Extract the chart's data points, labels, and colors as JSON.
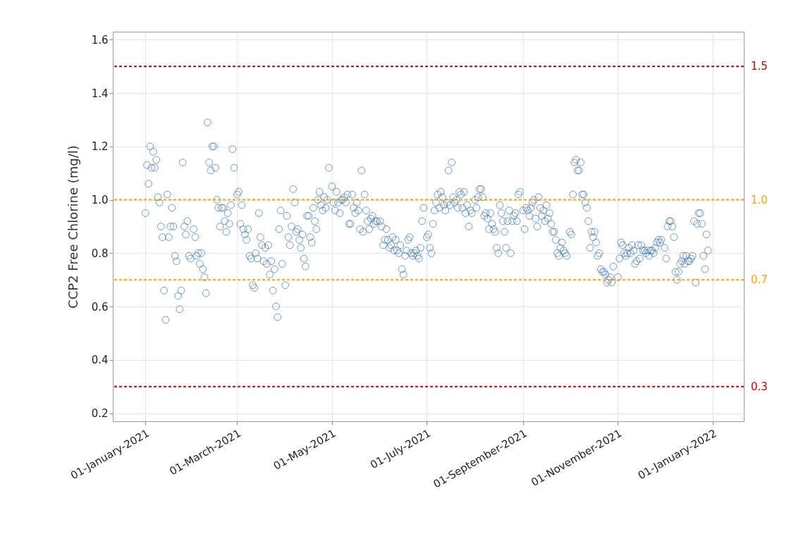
{
  "chart_data": {
    "type": "scatter",
    "ylabel": "CCP2 Free Chlorine (mg/l)",
    "xlim": [
      "2020-12-11",
      "2022-01-21"
    ],
    "ylim": [
      0.17,
      1.63
    ],
    "xticks": [
      {
        "value": "2021-01-01",
        "label": "01-January-2021"
      },
      {
        "value": "2021-03-01",
        "label": "01-March-2021"
      },
      {
        "value": "2021-05-01",
        "label": "01-May-2021"
      },
      {
        "value": "2021-07-01",
        "label": "01-July-2021"
      },
      {
        "value": "2021-09-01",
        "label": "01-September-2021"
      },
      {
        "value": "2021-11-01",
        "label": "01-November-2021"
      },
      {
        "value": "2022-01-01",
        "label": "01-January-2022"
      }
    ],
    "yticks": [
      0.2,
      0.4,
      0.6,
      0.8,
      {
        "value": 1,
        "label": "1.0"
      },
      1.2,
      1.4,
      1.6
    ],
    "grid": true,
    "marker": "circle",
    "color": "#2f6db5",
    "x": [
      "2021-01-01",
      "2021-01-02",
      "2021-01-03",
      "2021-01-04",
      "2021-01-05",
      "2021-01-06",
      "2021-01-07",
      "2021-01-08",
      "2021-01-09",
      "2021-01-10",
      "2021-01-11",
      "2021-01-12",
      "2021-01-13",
      "2021-01-14",
      "2021-01-15",
      "2021-01-16",
      "2021-01-17",
      "2021-01-18",
      "2021-01-19",
      "2021-01-20",
      "2021-01-21",
      "2021-01-22",
      "2021-01-23",
      "2021-01-24",
      "2021-01-25",
      "2021-01-26",
      "2021-01-27",
      "2021-01-28",
      "2021-01-29",
      "2021-01-30",
      "2021-02-01",
      "2021-02-02",
      "2021-02-03",
      "2021-02-04",
      "2021-02-05",
      "2021-02-06",
      "2021-02-07",
      "2021-02-08",
      "2021-02-09",
      "2021-02-10",
      "2021-02-11",
      "2021-02-12",
      "2021-02-13",
      "2021-02-14",
      "2021-02-15",
      "2021-02-16",
      "2021-02-17",
      "2021-02-18",
      "2021-02-19",
      "2021-02-20",
      "2021-02-21",
      "2021-02-22",
      "2021-02-23",
      "2021-02-24",
      "2021-02-25",
      "2021-02-26",
      "2021-02-27",
      "2021-03-01",
      "2021-03-02",
      "2021-03-03",
      "2021-03-04",
      "2021-03-05",
      "2021-03-06",
      "2021-03-07",
      "2021-03-08",
      "2021-03-09",
      "2021-03-10",
      "2021-03-11",
      "2021-03-12",
      "2021-03-13",
      "2021-03-14",
      "2021-03-15",
      "2021-03-16",
      "2021-03-17",
      "2021-03-18",
      "2021-03-19",
      "2021-03-20",
      "2021-03-21",
      "2021-03-22",
      "2021-03-23",
      "2021-03-24",
      "2021-03-25",
      "2021-03-26",
      "2021-03-27",
      "2021-03-28",
      "2021-03-29",
      "2021-03-30",
      "2021-04-01",
      "2021-04-02",
      "2021-04-03",
      "2021-04-04",
      "2021-04-05",
      "2021-04-06",
      "2021-04-07",
      "2021-04-08",
      "2021-04-09",
      "2021-04-10",
      "2021-04-11",
      "2021-04-12",
      "2021-04-13",
      "2021-04-14",
      "2021-04-15",
      "2021-04-16",
      "2021-04-17",
      "2021-04-18",
      "2021-04-19",
      "2021-04-20",
      "2021-04-21",
      "2021-04-22",
      "2021-04-23",
      "2021-04-24",
      "2021-04-25",
      "2021-04-26",
      "2021-04-27",
      "2021-04-28",
      "2021-04-29",
      "2021-05-01",
      "2021-05-02",
      "2021-05-03",
      "2021-05-04",
      "2021-05-05",
      "2021-05-06",
      "2021-05-07",
      "2021-05-08",
      "2021-05-09",
      "2021-05-10",
      "2021-05-11",
      "2021-05-12",
      "2021-05-13",
      "2021-05-14",
      "2021-05-15",
      "2021-05-16",
      "2021-05-17",
      "2021-05-18",
      "2021-05-19",
      "2021-05-20",
      "2021-05-21",
      "2021-05-22",
      "2021-05-23",
      "2021-05-24",
      "2021-05-25",
      "2021-05-26",
      "2021-05-27",
      "2021-05-28",
      "2021-05-29",
      "2021-05-30",
      "2021-06-01",
      "2021-06-02",
      "2021-06-03",
      "2021-06-04",
      "2021-06-05",
      "2021-06-06",
      "2021-06-07",
      "2021-06-08",
      "2021-06-09",
      "2021-06-10",
      "2021-06-11",
      "2021-06-12",
      "2021-06-13",
      "2021-06-14",
      "2021-06-15",
      "2021-06-16",
      "2021-06-17",
      "2021-06-18",
      "2021-06-19",
      "2021-06-20",
      "2021-06-21",
      "2021-06-22",
      "2021-06-23",
      "2021-06-24",
      "2021-06-25",
      "2021-06-26",
      "2021-06-27",
      "2021-06-28",
      "2021-06-29",
      "2021-07-01",
      "2021-07-02",
      "2021-07-03",
      "2021-07-04",
      "2021-07-05",
      "2021-07-06",
      "2021-07-07",
      "2021-07-08",
      "2021-07-09",
      "2021-07-10",
      "2021-07-11",
      "2021-07-12",
      "2021-07-13",
      "2021-07-14",
      "2021-07-15",
      "2021-07-16",
      "2021-07-17",
      "2021-07-18",
      "2021-07-19",
      "2021-07-20",
      "2021-07-21",
      "2021-07-22",
      "2021-07-23",
      "2021-07-24",
      "2021-07-25",
      "2021-07-26",
      "2021-07-27",
      "2021-07-28",
      "2021-07-29",
      "2021-07-30",
      "2021-08-01",
      "2021-08-02",
      "2021-08-03",
      "2021-08-04",
      "2021-08-05",
      "2021-08-06",
      "2021-08-07",
      "2021-08-08",
      "2021-08-09",
      "2021-08-10",
      "2021-08-11",
      "2021-08-12",
      "2021-08-13",
      "2021-08-14",
      "2021-08-15",
      "2021-08-16",
      "2021-08-17",
      "2021-08-18",
      "2021-08-19",
      "2021-08-20",
      "2021-08-21",
      "2021-08-22",
      "2021-08-23",
      "2021-08-24",
      "2021-08-25",
      "2021-08-26",
      "2021-08-27",
      "2021-08-28",
      "2021-08-29",
      "2021-08-30",
      "2021-09-01",
      "2021-09-02",
      "2021-09-03",
      "2021-09-04",
      "2021-09-05",
      "2021-09-06",
      "2021-09-07",
      "2021-09-08",
      "2021-09-09",
      "2021-09-10",
      "2021-09-11",
      "2021-09-12",
      "2021-09-13",
      "2021-09-14",
      "2021-09-15",
      "2021-09-16",
      "2021-09-17",
      "2021-09-18",
      "2021-09-19",
      "2021-09-20",
      "2021-09-21",
      "2021-09-22",
      "2021-09-23",
      "2021-09-24",
      "2021-09-25",
      "2021-09-26",
      "2021-09-27",
      "2021-09-28",
      "2021-09-29",
      "2021-10-01",
      "2021-10-02",
      "2021-10-03",
      "2021-10-04",
      "2021-10-05",
      "2021-10-06",
      "2021-10-07",
      "2021-10-08",
      "2021-10-09",
      "2021-10-10",
      "2021-10-11",
      "2021-10-12",
      "2021-10-13",
      "2021-10-14",
      "2021-10-15",
      "2021-10-16",
      "2021-10-17",
      "2021-10-18",
      "2021-10-19",
      "2021-10-20",
      "2021-10-21",
      "2021-10-22",
      "2021-10-23",
      "2021-10-24",
      "2021-10-25",
      "2021-10-26",
      "2021-10-27",
      "2021-10-28",
      "2021-10-29",
      "2021-11-01",
      "2021-11-02",
      "2021-11-03",
      "2021-11-04",
      "2021-11-05",
      "2021-11-06",
      "2021-11-07",
      "2021-11-08",
      "2021-11-09",
      "2021-11-10",
      "2021-11-11",
      "2021-11-12",
      "2021-11-13",
      "2021-11-14",
      "2021-11-15",
      "2021-11-16",
      "2021-11-17",
      "2021-11-18",
      "2021-11-19",
      "2021-11-20",
      "2021-11-21",
      "2021-11-22",
      "2021-11-23",
      "2021-11-24",
      "2021-11-25",
      "2021-11-26",
      "2021-11-27",
      "2021-11-28",
      "2021-11-29",
      "2021-12-01",
      "2021-12-02",
      "2021-12-03",
      "2021-12-04",
      "2021-12-05",
      "2021-12-06",
      "2021-12-07",
      "2021-12-08",
      "2021-12-09",
      "2021-12-10",
      "2021-12-11",
      "2021-12-12",
      "2021-12-13",
      "2021-12-14",
      "2021-12-15",
      "2021-12-16",
      "2021-12-17",
      "2021-12-18",
      "2021-12-19",
      "2021-12-20",
      "2021-12-21",
      "2021-12-22",
      "2021-12-23",
      "2021-12-24",
      "2021-12-25",
      "2021-12-26",
      "2021-12-27",
      "2021-12-28",
      "2021-12-29"
    ],
    "values": [
      0.95,
      1.13,
      1.06,
      1.2,
      1.12,
      1.18,
      1.12,
      1.15,
      1.01,
      0.99,
      0.9,
      0.86,
      0.66,
      0.55,
      1.02,
      0.86,
      0.9,
      0.97,
      0.9,
      0.79,
      0.77,
      0.64,
      0.59,
      0.66,
      1.14,
      0.9,
      0.87,
      0.92,
      0.79,
      0.78,
      0.89,
      0.86,
      0.79,
      0.8,
      0.76,
      0.8,
      0.74,
      0.71,
      0.65,
      1.29,
      1.14,
      1.11,
      1.2,
      1.2,
      1.12,
      1.0,
      0.97,
      0.9,
      0.97,
      0.97,
      0.92,
      0.88,
      0.95,
      0.91,
      0.98,
      1.19,
      1.12,
      1.02,
      1.03,
      0.91,
      0.98,
      0.89,
      0.87,
      0.85,
      0.89,
      0.79,
      0.78,
      0.68,
      0.67,
      0.8,
      0.78,
      0.95,
      0.86,
      0.83,
      0.77,
      0.82,
      0.76,
      0.83,
      0.72,
      0.77,
      0.66,
      0.74,
      0.6,
      0.56,
      0.89,
      0.96,
      0.76,
      0.68,
      0.94,
      0.86,
      0.83,
      0.9,
      1.04,
      0.99,
      0.88,
      0.89,
      0.85,
      0.82,
      0.87,
      0.78,
      0.75,
      0.94,
      0.94,
      0.86,
      0.84,
      0.97,
      0.92,
      0.89,
      1.0,
      1.03,
      0.98,
      0.96,
      1.01,
      0.97,
      1.0,
      1.12,
      1.05,
      0.99,
      0.96,
      1.03,
      0.99,
      0.95,
      1.0,
      1.0,
      1.01,
      0.99,
      1.02,
      0.91,
      0.91,
      1.02,
      0.97,
      0.95,
      0.99,
      0.96,
      0.89,
      1.11,
      0.88,
      1.02,
      0.96,
      0.92,
      0.89,
      0.93,
      0.94,
      0.91,
      0.92,
      0.92,
      0.92,
      0.9,
      0.83,
      0.85,
      0.89,
      0.85,
      0.82,
      0.83,
      0.86,
      0.81,
      0.85,
      0.81,
      0.8,
      0.83,
      0.74,
      0.72,
      0.79,
      0.81,
      0.85,
      0.86,
      0.8,
      0.79,
      0.8,
      0.81,
      0.79,
      0.78,
      0.82,
      0.92,
      0.97,
      0.86,
      0.87,
      0.82,
      0.8,
      0.91,
      0.96,
      0.99,
      1.02,
      0.97,
      1.03,
      1.01,
      0.98,
      0.96,
      0.99,
      1.11,
      0.98,
      1.14,
      1.01,
      0.99,
      1.0,
      0.97,
      1.03,
      1.02,
      0.97,
      1.03,
      0.95,
      0.98,
      0.9,
      0.96,
      0.95,
      1.0,
      0.97,
      1.01,
      1.04,
      1.04,
      1.01,
      0.94,
      0.95,
      0.93,
      0.89,
      0.95,
      0.91,
      0.89,
      0.88,
      0.82,
      0.8,
      0.98,
      0.95,
      0.92,
      0.88,
      0.82,
      0.92,
      0.96,
      0.8,
      0.92,
      0.94,
      0.95,
      0.92,
      1.02,
      1.03,
      0.96,
      0.89,
      0.97,
      0.96,
      0.94,
      0.97,
      0.99,
      1.0,
      0.93,
      0.9,
      1.01,
      0.97,
      0.94,
      0.96,
      0.92,
      0.98,
      0.93,
      0.95,
      0.91,
      0.88,
      0.88,
      0.85,
      0.8,
      0.79,
      0.82,
      0.84,
      0.81,
      0.8,
      0.79,
      0.88,
      0.87,
      1.02,
      1.14,
      1.15,
      1.11,
      1.11,
      1.14,
      1.02,
      1.02,
      0.99,
      0.97,
      0.92,
      0.82,
      0.88,
      0.86,
      0.88,
      0.84,
      0.79,
      0.8,
      0.74,
      0.73,
      0.73,
      0.72,
      0.69,
      0.7,
      0.71,
      0.69,
      0.75,
      0.71,
      0.78,
      0.84,
      0.83,
      0.8,
      0.79,
      0.8,
      0.82,
      0.8,
      0.83,
      0.81,
      0.76,
      0.77,
      0.83,
      0.78,
      0.83,
      0.81,
      0.81,
      0.8,
      0.81,
      0.79,
      0.81,
      0.81,
      0.8,
      0.82,
      0.84,
      0.85,
      0.84,
      0.85,
      0.82,
      0.78,
      0.9,
      0.92,
      0.92,
      0.9,
      0.86,
      0.73,
      0.7,
      0.73,
      0.76,
      0.77,
      0.79,
      0.76,
      0.79,
      0.77,
      0.77,
      0.78,
      0.79,
      0.92,
      0.69,
      0.91,
      0.95,
      0.95,
      0.91,
      0.79,
      0.74,
      0.87,
      0.81
    ],
    "ref_lines": [
      {
        "axis": "y",
        "value": 1.5,
        "label": "1.5",
        "color": "#cc0000",
        "line_style": "dashed"
      },
      {
        "axis": "y",
        "value": 1.0,
        "label": "1.0",
        "color": "#ffa500",
        "line_style": "dashed"
      },
      {
        "axis": "y",
        "value": 0.7,
        "label": "0.7",
        "color": "#ffa500",
        "line_style": "dashed"
      },
      {
        "axis": "y",
        "value": 0.3,
        "label": "0.3",
        "color": "#cc0000",
        "line_style": "dashed"
      }
    ]
  }
}
